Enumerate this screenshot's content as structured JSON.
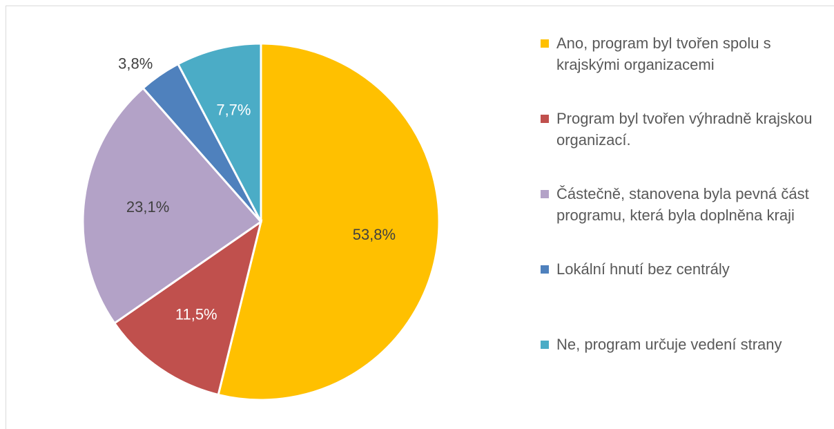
{
  "chart_data": {
    "type": "pie",
    "categories": [
      "Ano, program byl tvořen spolu s krajskými organizacemi",
      "Program byl tvořen výhradně krajskou organizací.",
      "Částečně, stanovena byla pevná část programu, která byla doplněna kraji",
      "Lokální hnutí bez centrály",
      "Ne, program určuje vedení strany"
    ],
    "values": [
      53.8,
      11.5,
      23.1,
      3.8,
      7.7
    ],
    "value_labels": [
      "53,8%",
      "11,5%",
      "23,1%",
      "3,8%",
      "7,7%"
    ],
    "colors": [
      "#ffc000",
      "#c0504d",
      "#b3a2c7",
      "#4f81bd",
      "#4bacc6"
    ],
    "label_colors": [
      "#404040",
      "#ffffff",
      "#404040",
      "#404040",
      "#ffffff"
    ],
    "legend": "right"
  }
}
